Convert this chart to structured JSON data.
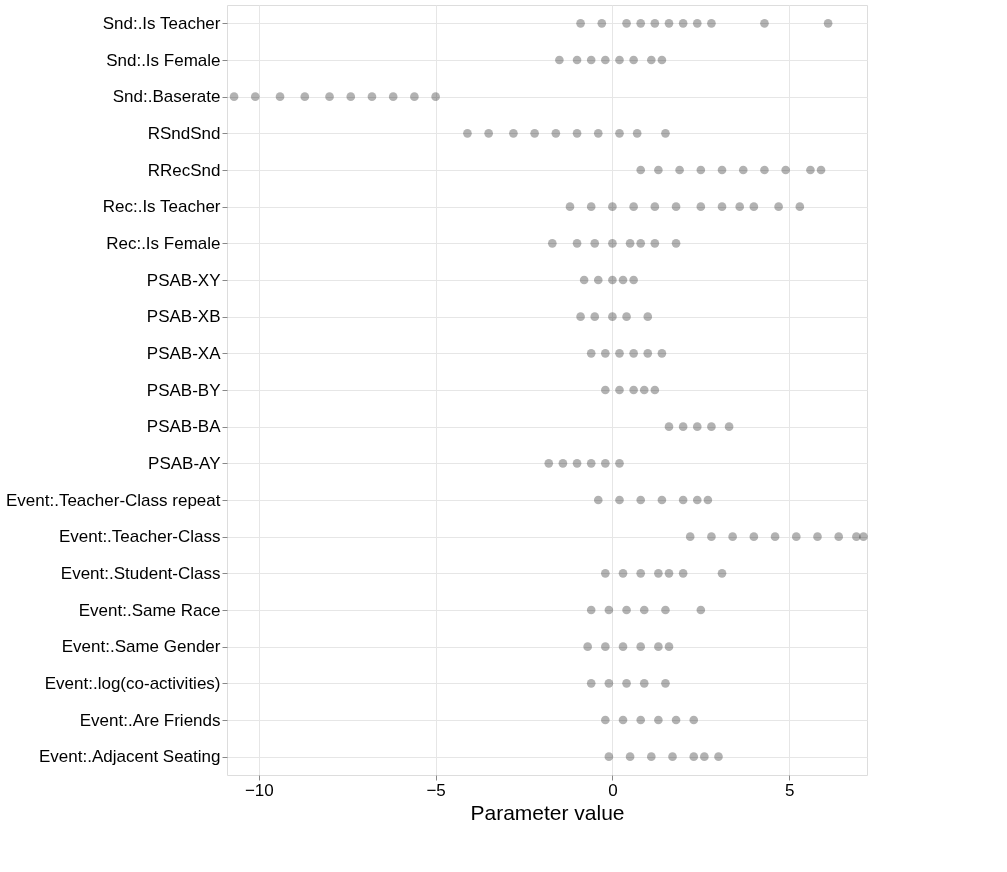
{
  "chart_data": {
    "type": "scatter",
    "orientation": "horizontal",
    "xlabel": "Parameter value",
    "categories": [
      "Snd:.Is Teacher",
      "Snd:.Is Female",
      "Snd:.Baserate",
      "RSndSnd",
      "RRecSnd",
      "Rec:.Is Teacher",
      "Rec:.Is Female",
      "PSAB-XY",
      "PSAB-XB",
      "PSAB-XA",
      "PSAB-BY",
      "PSAB-BA",
      "PSAB-AY",
      "Event:.Teacher-Class repeat",
      "Event:.Teacher-Class",
      "Event:.Student-Class",
      "Event:.Same Race",
      "Event:.Same Gender",
      "Event:.log(co-activities)",
      "Event:.Are Friends",
      "Event:.Adjacent Seating"
    ],
    "series": [
      {
        "color": "#000000",
        "x": [
          "Snd:.Is Teacher",
          "Snd:.Is Teacher",
          "Snd:.Is Teacher",
          "Snd:.Is Teacher",
          "Snd:.Is Teacher",
          "Snd:.Is Teacher",
          "Snd:.Is Teacher",
          "Snd:.Is Teacher",
          "Snd:.Is Teacher",
          "Snd:.Is Teacher",
          "Snd:.Is Teacher"
        ],
        "values": [
          -0.9,
          -0.3,
          0.4,
          0.8,
          1.2,
          1.6,
          2.0,
          2.4,
          2.8,
          4.3,
          6.1
        ]
      },
      {
        "color": "#000000",
        "x": [
          "Snd:.Is Female",
          "Snd:.Is Female",
          "Snd:.Is Female",
          "Snd:.Is Female",
          "Snd:.Is Female",
          "Snd:.Is Female",
          "Snd:.Is Female",
          "Snd:.Is Female"
        ],
        "values": [
          -1.5,
          -1.0,
          -0.6,
          -0.2,
          0.2,
          0.6,
          1.1,
          1.4
        ]
      },
      {
        "color": "#000000",
        "x": [
          "Snd:.Baserate",
          "Snd:.Baserate",
          "Snd:.Baserate",
          "Snd:.Baserate",
          "Snd:.Baserate",
          "Snd:.Baserate",
          "Snd:.Baserate",
          "Snd:.Baserate",
          "Snd:.Baserate",
          "Snd:.Baserate"
        ],
        "values": [
          -10.7,
          -10.1,
          -9.4,
          -8.7,
          -8.0,
          -7.4,
          -6.8,
          -6.2,
          -5.6,
          -5.0
        ]
      },
      {
        "color": "#000000",
        "x": [
          "RSndSnd",
          "RSndSnd",
          "RSndSnd",
          "RSndSnd",
          "RSndSnd",
          "RSndSnd",
          "RSndSnd",
          "RSndSnd",
          "RSndSnd",
          "RSndSnd"
        ],
        "values": [
          -4.1,
          -3.5,
          -2.8,
          -2.2,
          -1.6,
          -1.0,
          -0.4,
          0.2,
          0.7,
          1.5
        ]
      },
      {
        "color": "#000000",
        "x": [
          "RRecSnd",
          "RRecSnd",
          "RRecSnd",
          "RRecSnd",
          "RRecSnd",
          "RRecSnd",
          "RRecSnd",
          "RRecSnd",
          "RRecSnd",
          "RRecSnd"
        ],
        "values": [
          0.8,
          1.3,
          1.9,
          2.5,
          3.1,
          3.7,
          4.3,
          4.9,
          5.6,
          5.9
        ]
      },
      {
        "color": "#000000",
        "x": [
          "Rec:.Is Teacher",
          "Rec:.Is Teacher",
          "Rec:.Is Teacher",
          "Rec:.Is Teacher",
          "Rec:.Is Teacher",
          "Rec:.Is Teacher",
          "Rec:.Is Teacher",
          "Rec:.Is Teacher",
          "Rec:.Is Teacher",
          "Rec:.Is Teacher",
          "Rec:.Is Teacher",
          "Rec:.Is Teacher"
        ],
        "values": [
          -1.2,
          -0.6,
          0,
          0.6,
          1.2,
          1.8,
          2.5,
          3.1,
          3.6,
          4.0,
          4.7,
          5.3
        ]
      },
      {
        "color": "#000000",
        "x": [
          "Rec:.Is Female",
          "Rec:.Is Female",
          "Rec:.Is Female",
          "Rec:.Is Female",
          "Rec:.Is Female",
          "Rec:.Is Female",
          "Rec:.Is Female",
          "Rec:.Is Female"
        ],
        "values": [
          -1.7,
          -1.0,
          -0.5,
          0,
          0.5,
          0.8,
          1.2,
          1.8
        ]
      },
      {
        "color": "#000000",
        "x": [
          "PSAB-XY",
          "PSAB-XY",
          "PSAB-XY",
          "PSAB-XY",
          "PSAB-XY"
        ],
        "values": [
          -0.8,
          -0.4,
          0,
          0.3,
          0.6
        ]
      },
      {
        "color": "#000000",
        "x": [
          "PSAB-XB",
          "PSAB-XB",
          "PSAB-XB",
          "PSAB-XB",
          "PSAB-XB"
        ],
        "values": [
          -0.9,
          -0.5,
          0,
          0.4,
          1.0
        ]
      },
      {
        "color": "#000000",
        "x": [
          "PSAB-XA",
          "PSAB-XA",
          "PSAB-XA",
          "PSAB-XA",
          "PSAB-XA",
          "PSAB-XA"
        ],
        "values": [
          -0.6,
          -0.2,
          0.2,
          0.6,
          1.0,
          1.4
        ]
      },
      {
        "color": "#000000",
        "x": [
          "PSAB-BY",
          "PSAB-BY",
          "PSAB-BY",
          "PSAB-BY",
          "PSAB-BY"
        ],
        "values": [
          -0.2,
          0.2,
          0.6,
          0.9,
          1.2
        ]
      },
      {
        "color": "#000000",
        "x": [
          "PSAB-BA",
          "PSAB-BA",
          "PSAB-BA",
          "PSAB-BA",
          "PSAB-BA"
        ],
        "values": [
          1.6,
          2.0,
          2.4,
          2.8,
          3.3
        ]
      },
      {
        "color": "#000000",
        "x": [
          "PSAB-AY",
          "PSAB-AY",
          "PSAB-AY",
          "PSAB-AY",
          "PSAB-AY",
          "PSAB-AY"
        ],
        "values": [
          -1.8,
          -1.4,
          -1.0,
          -0.6,
          -0.2,
          0.2
        ]
      },
      {
        "color": "#000000",
        "x": [
          "Event:.Teacher-Class repeat",
          "Event:.Teacher-Class repeat",
          "Event:.Teacher-Class repeat",
          "Event:.Teacher-Class repeat",
          "Event:.Teacher-Class repeat",
          "Event:.Teacher-Class repeat",
          "Event:.Teacher-Class repeat"
        ],
        "values": [
          -0.4,
          0.2,
          0.8,
          1.4,
          2.0,
          2.4,
          2.7
        ]
      },
      {
        "color": "#000000",
        "x": [
          "Event:.Teacher-Class",
          "Event:.Teacher-Class",
          "Event:.Teacher-Class",
          "Event:.Teacher-Class",
          "Event:.Teacher-Class",
          "Event:.Teacher-Class",
          "Event:.Teacher-Class",
          "Event:.Teacher-Class",
          "Event:.Teacher-Class",
          "Event:.Teacher-Class"
        ],
        "values": [
          2.2,
          2.8,
          3.4,
          4.0,
          4.6,
          5.2,
          5.8,
          6.4,
          6.9,
          7.1
        ]
      },
      {
        "color": "#000000",
        "x": [
          "Event:.Student-Class",
          "Event:.Student-Class",
          "Event:.Student-Class",
          "Event:.Student-Class",
          "Event:.Student-Class",
          "Event:.Student-Class",
          "Event:.Student-Class"
        ],
        "values": [
          -0.2,
          0.3,
          0.8,
          1.3,
          1.6,
          2.0,
          3.1
        ]
      },
      {
        "color": "#000000",
        "x": [
          "Event:.Same Race",
          "Event:.Same Race",
          "Event:.Same Race",
          "Event:.Same Race",
          "Event:.Same Race",
          "Event:.Same Race"
        ],
        "values": [
          -0.6,
          -0.1,
          0.4,
          0.9,
          1.5,
          2.5
        ]
      },
      {
        "color": "#000000",
        "x": [
          "Event:.Same Gender",
          "Event:.Same Gender",
          "Event:.Same Gender",
          "Event:.Same Gender",
          "Event:.Same Gender",
          "Event:.Same Gender"
        ],
        "values": [
          -0.7,
          -0.2,
          0.3,
          0.8,
          1.3,
          1.6
        ]
      },
      {
        "color": "#000000",
        "x": [
          "Event:.log(co-activities)",
          "Event:.log(co-activities)",
          "Event:.log(co-activities)",
          "Event:.log(co-activities)",
          "Event:.log(co-activities)"
        ],
        "values": [
          -0.6,
          -0.1,
          0.4,
          0.9,
          1.5
        ]
      },
      {
        "color": "#000000",
        "x": [
          "Event:.Are Friends",
          "Event:.Are Friends",
          "Event:.Are Friends",
          "Event:.Are Friends",
          "Event:.Are Friends",
          "Event:.Are Friends"
        ],
        "values": [
          -0.2,
          0.3,
          0.8,
          1.3,
          1.8,
          2.3
        ]
      },
      {
        "color": "#000000",
        "x": [
          "Event:.Adjacent Seating",
          "Event:.Adjacent Seating",
          "Event:.Adjacent Seating",
          "Event:.Adjacent Seating",
          "Event:.Adjacent Seating",
          "Event:.Adjacent Seating",
          "Event:.Adjacent Seating"
        ],
        "values": [
          -0.1,
          0.5,
          1.1,
          1.7,
          2.3,
          2.6,
          3.0
        ]
      }
    ],
    "xlim": [
      -10.9,
      7.2
    ],
    "xticks": [
      -10,
      -5,
      0,
      5
    ],
    "grid": true,
    "marker": "circle",
    "legend": false
  }
}
